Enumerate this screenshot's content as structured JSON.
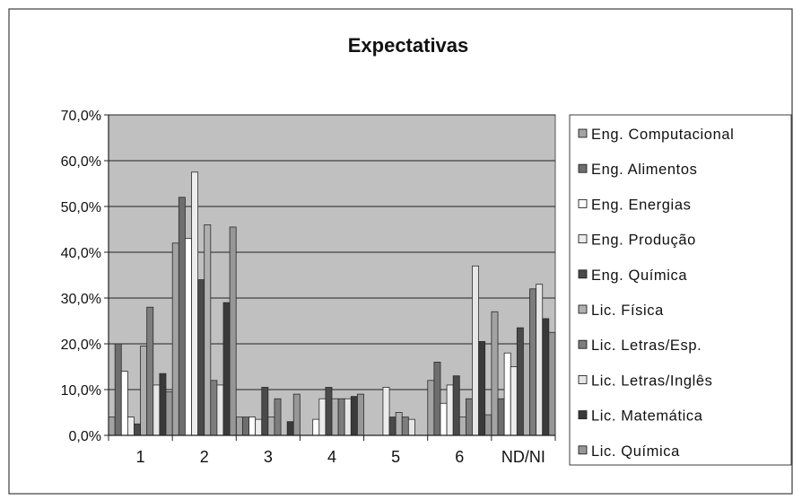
{
  "chart_data": {
    "type": "bar",
    "title": "Expectativas",
    "xlabel": "",
    "ylabel": "",
    "categories": [
      "1",
      "2",
      "3",
      "4",
      "5",
      "6",
      "ND/NI"
    ],
    "y_ticks": [
      "0,0%",
      "10,0%",
      "20,0%",
      "30,0%",
      "40,0%",
      "50,0%",
      "60,0%",
      "70,0%"
    ],
    "ylim": [
      0,
      70
    ],
    "grid": true,
    "legend_position": "right",
    "plot_background": "#c0c0c0",
    "series": [
      {
        "name": "Eng. Computacional",
        "color": "#a3a3a3",
        "values": [
          4.0,
          42.0,
          4.0,
          0,
          0,
          12.0,
          27.0
        ]
      },
      {
        "name": "Eng. Alimentos",
        "color": "#6e6e6e",
        "values": [
          20.0,
          52.0,
          4.0,
          0,
          0,
          16.0,
          8.0
        ]
      },
      {
        "name": "Eng. Energias",
        "color": "#ffffff",
        "values": [
          14.0,
          43.0,
          4.0,
          3.5,
          0,
          7.0,
          18.0
        ]
      },
      {
        "name": "Eng. Produção",
        "color": "#ececec",
        "values": [
          4.0,
          57.5,
          3.5,
          8.0,
          10.5,
          11.0,
          15.0
        ]
      },
      {
        "name": "Eng. Química",
        "color": "#4a4a4a",
        "values": [
          2.5,
          34.0,
          10.5,
          10.5,
          4.0,
          13.0,
          23.5
        ]
      },
      {
        "name": "Lic. Física",
        "color": "#b0b0b0",
        "values": [
          19.5,
          46.0,
          4.0,
          8.0,
          5.0,
          4.0,
          20.0
        ]
      },
      {
        "name": "Lic. Letras/Esp.",
        "color": "#7d7d7d",
        "values": [
          28.0,
          12.0,
          8.0,
          8.0,
          4.0,
          8.0,
          32.0
        ]
      },
      {
        "name": "Lic. Letras/Inglês",
        "color": "#e6e6e6",
        "values": [
          11.0,
          11.0,
          0,
          8.0,
          3.5,
          37.0,
          33.0
        ]
      },
      {
        "name": "Lic. Matemática",
        "color": "#3a3a3a",
        "values": [
          13.5,
          29.0,
          3.0,
          8.5,
          0,
          20.5,
          25.5
        ]
      },
      {
        "name": "Lic. Química",
        "color": "#979797",
        "values": [
          9.5,
          45.5,
          9.0,
          9.0,
          0,
          4.5,
          22.5
        ]
      }
    ]
  }
}
